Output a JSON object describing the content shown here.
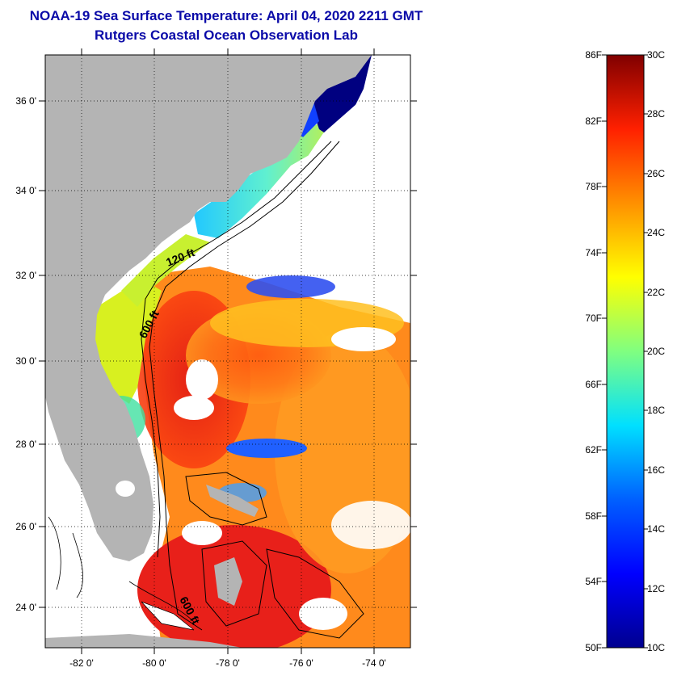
{
  "header": {
    "title": "NOAA-19 Sea Surface Temperature:  April 04, 2020 2211 GMT",
    "subtitle": "Rutgers Coastal Ocean Observation Lab"
  },
  "map": {
    "lat_ticks": [
      "36 0'",
      "34 0'",
      "32 0'",
      "30 0'",
      "28 0'",
      "26 0'",
      "24 0'"
    ],
    "lon_ticks": [
      "-82 0'",
      "-80 0'",
      "-78 0'",
      "-76 0'",
      "-74 0'"
    ],
    "contour_labels": [
      "120 ft",
      "600 ft",
      "600 ft"
    ],
    "land_color": "#b4b4b4",
    "cloud_color": "#ffffff"
  },
  "colorbar": {
    "fahrenheit_labels": [
      "86F",
      "82F",
      "78F",
      "74F",
      "70F",
      "66F",
      "62F",
      "58F",
      "54F",
      "50F"
    ],
    "celsius_labels": [
      "30C",
      "28C",
      "26C",
      "24C",
      "22C",
      "20C",
      "18C",
      "16C",
      "14C",
      "12C",
      "10C"
    ],
    "colors": [
      "#00008f",
      "#0000ff",
      "#0080ff",
      "#00ffff",
      "#80ff80",
      "#ffff00",
      "#ff8000",
      "#ff0000",
      "#800000"
    ]
  }
}
